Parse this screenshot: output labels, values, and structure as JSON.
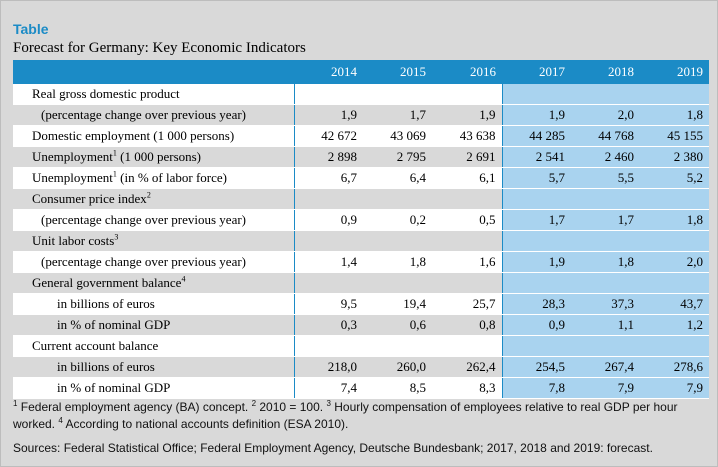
{
  "label": "Table",
  "title": "Forecast for Germany: Key Economic Indicators",
  "colors": {
    "header_bg": "#1b8bc6",
    "forecast_bg": "#a9d3ef",
    "shade_bg": "#d9d9d9"
  },
  "years": [
    "2014",
    "2015",
    "2016",
    "2017",
    "2018",
    "2019"
  ],
  "rows": [
    {
      "label": "Real gross domestic product",
      "values": [
        "",
        "",
        "",
        "",
        "",
        ""
      ]
    },
    {
      "label": "(percentage change over previous year)",
      "values": [
        "1,9",
        "1,7",
        "1,9",
        "1,9",
        "2,0",
        "1,8"
      ]
    },
    {
      "label": "Domestic employment (1 000 persons)",
      "values": [
        "42 672",
        "43 069",
        "43 638",
        "44 285",
        "44 768",
        "45 155"
      ]
    },
    {
      "label": "Unemployment",
      "sup": "1",
      "label_tail": " (1 000 persons)",
      "values": [
        "2 898",
        "2 795",
        "2 691",
        "2 541",
        "2 460",
        "2 380"
      ]
    },
    {
      "label": "Unemployment",
      "sup": "1",
      "label_tail": " (in % of labor force)",
      "values": [
        "6,7",
        "6,4",
        "6,1",
        "5,7",
        "5,5",
        "5,2"
      ]
    },
    {
      "label": "Consumer price index",
      "sup": "2",
      "values": [
        "",
        "",
        "",
        "",
        "",
        ""
      ]
    },
    {
      "label": "(percentage change over previous year)",
      "values": [
        "0,9",
        "0,2",
        "0,5",
        "1,7",
        "1,7",
        "1,8"
      ]
    },
    {
      "label": "Unit labor costs",
      "sup": "3",
      "values": [
        "",
        "",
        "",
        "",
        "",
        ""
      ]
    },
    {
      "label": "(percentage change over previous year)",
      "values": [
        "1,4",
        "1,8",
        "1,6",
        "1,9",
        "1,8",
        "2,0"
      ]
    },
    {
      "label": "General government balance",
      "sup": "4",
      "values": [
        "",
        "",
        "",
        "",
        "",
        ""
      ]
    },
    {
      "label": "in billions of euros",
      "values": [
        "9,5",
        "19,4",
        "25,7",
        "28,3",
        "37,3",
        "43,7"
      ]
    },
    {
      "label": "in % of nominal GDP",
      "values": [
        "0,3",
        "0,6",
        "0,8",
        "0,9",
        "1,1",
        "1,2"
      ]
    },
    {
      "label": "Current account balance",
      "values": [
        "",
        "",
        "",
        "",
        "",
        ""
      ]
    },
    {
      "label": "in billions of euros",
      "values": [
        "218,0",
        "260,0",
        "262,4",
        "254,5",
        "267,4",
        "278,6"
      ]
    },
    {
      "label": "in % of nominal GDP",
      "values": [
        "7,4",
        "8,5",
        "8,3",
        "7,8",
        "7,9",
        "7,9"
      ]
    }
  ],
  "footnotes": {
    "n1": "1",
    "t1": " Federal employment agency (BA) concept. ",
    "n2": "2",
    "t2": " 2010 = 100. ",
    "n3": "3",
    "t3": " Hourly compensation of employees relative to real GDP per hour worked. ",
    "n4": "4",
    "t4": " According to national accounts definition (ESA 2010)."
  },
  "sources": "Sources: Federal Statistical Office; Federal Employment Agency, Deutsche Bundesbank; 2017, 2018 and 2019: forecast."
}
